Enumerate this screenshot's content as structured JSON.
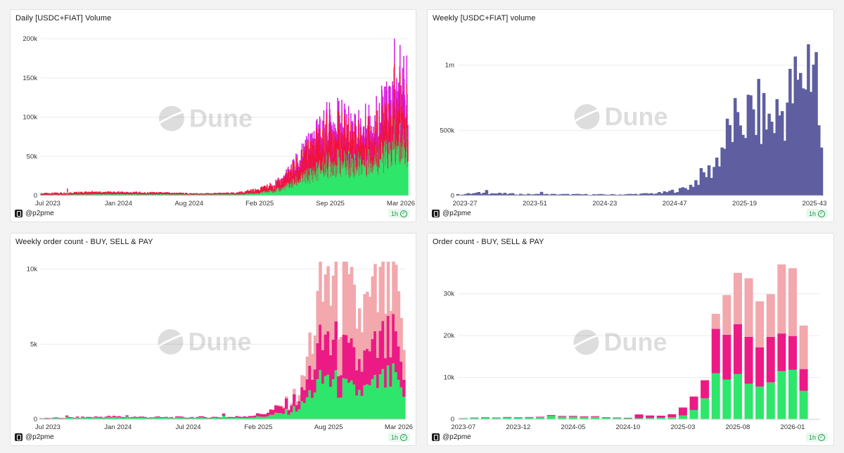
{
  "brand": {
    "watermark": "Dune",
    "author": "@p2pme",
    "refresh": "1h"
  },
  "colors": {
    "green": "#2ee66b",
    "red": "#f0133d",
    "magenta": "#d81ae0",
    "purple": "#5e5ea0",
    "pink": "#ec1a85",
    "lightpink": "#f2a8ad",
    "grid": "#ececec"
  },
  "chart_data": [
    {
      "type": "bar",
      "stacked": true,
      "title": "Daily [USDC+FIAT] Volume",
      "x_ticks": [
        "Jul 2023",
        "Jan 2024",
        "Aug 2024",
        "Feb 2025",
        "Sep 2025",
        "Mar 2026"
      ],
      "y_ticks": [
        "0",
        "50k",
        "100k",
        "150k",
        "200k"
      ],
      "ylim": [
        0,
        200000
      ],
      "x_range": [
        "2023-07-01",
        "2026-03-05"
      ],
      "grid": true,
      "series": [
        {
          "color": "green",
          "points": [
            [
              "2023-07-01",
              800
            ],
            [
              "2023-10-01",
              1500
            ],
            [
              "2024-01-01",
              1800
            ],
            [
              "2024-05-01",
              1500
            ],
            [
              "2024-09-01",
              1200
            ],
            [
              "2024-12-01",
              1400
            ],
            [
              "2025-02-01",
              3000
            ],
            [
              "2025-04-01",
              8000
            ],
            [
              "2025-05-01",
              15000
            ],
            [
              "2025-06-01",
              22000
            ],
            [
              "2025-07-01",
              30000
            ],
            [
              "2025-08-01",
              38000
            ],
            [
              "2025-09-01",
              42000
            ],
            [
              "2025-10-01",
              40000
            ],
            [
              "2025-11-01",
              40000
            ],
            [
              "2025-12-01",
              45000
            ],
            [
              "2026-01-01",
              50000
            ],
            [
              "2026-02-01",
              55000
            ],
            [
              "2026-03-05",
              60000
            ]
          ]
        },
        {
          "color": "red",
          "points": [
            [
              "2023-07-01",
              1500
            ],
            [
              "2023-10-01",
              2000
            ],
            [
              "2024-01-01",
              2000
            ],
            [
              "2024-05-01",
              1800
            ],
            [
              "2024-09-01",
              1000
            ],
            [
              "2024-12-01",
              1500
            ],
            [
              "2025-02-01",
              4000
            ],
            [
              "2025-04-01",
              8000
            ],
            [
              "2025-05-01",
              15000
            ],
            [
              "2025-06-01",
              22000
            ],
            [
              "2025-07-01",
              30000
            ],
            [
              "2025-08-01",
              35000
            ],
            [
              "2025-09-01",
              35000
            ],
            [
              "2025-10-01",
              30000
            ],
            [
              "2025-11-01",
              28000
            ],
            [
              "2025-12-01",
              32000
            ],
            [
              "2026-01-01",
              35000
            ],
            [
              "2026-02-01",
              40000
            ],
            [
              "2026-03-05",
              40000
            ]
          ]
        },
        {
          "color": "magenta",
          "points": [
            [
              "2023-07-01",
              0
            ],
            [
              "2025-03-01",
              0
            ],
            [
              "2025-05-01",
              2000
            ],
            [
              "2025-06-01",
              5000
            ],
            [
              "2025-07-01",
              8000
            ],
            [
              "2025-08-01",
              10000
            ],
            [
              "2025-09-01",
              10000
            ],
            [
              "2025-10-01",
              10000
            ],
            [
              "2025-11-01",
              9000
            ],
            [
              "2025-12-01",
              12000
            ],
            [
              "2026-01-01",
              15000
            ],
            [
              "2026-02-01",
              20000
            ],
            [
              "2026-03-05",
              25000
            ]
          ]
        }
      ],
      "spikes": [
        [
          "2023-09-10",
          9000
        ],
        [
          "2023-11-15",
          6000
        ],
        [
          "2024-03-10",
          5000
        ],
        [
          "2024-10-20",
          4000
        ],
        [
          "2025-02-25",
          8000
        ],
        [
          "2025-03-20",
          12000
        ],
        [
          "2026-01-28",
          204000
        ],
        [
          "2026-02-12",
          192000
        ],
        [
          "2026-02-22",
          178000
        ]
      ]
    },
    {
      "type": "bar",
      "title": "Weekly [USDC+FIAT] volume",
      "x_ticks": [
        "2023-27",
        "2023-51",
        "2024-23",
        "2024-47",
        "2025-19",
        "2025-43"
      ],
      "y_ticks": [
        "0",
        "500k",
        "1m"
      ],
      "ylim": [
        0,
        1230000
      ],
      "x_range": [
        "2023-07-03",
        "2026-03-02"
      ],
      "grid": true,
      "series": [
        {
          "color": "purple",
          "points": [
            [
              "2023-07-03",
              8000
            ],
            [
              "2023-09-01",
              20000
            ],
            [
              "2023-11-01",
              15000
            ],
            [
              "2024-01-01",
              10000
            ],
            [
              "2024-03-01",
              10000
            ],
            [
              "2024-06-01",
              9000
            ],
            [
              "2024-09-01",
              8000
            ],
            [
              "2024-11-01",
              12000
            ],
            [
              "2025-01-01",
              20000
            ],
            [
              "2025-02-15",
              45000
            ],
            [
              "2025-03-15",
              70000
            ],
            [
              "2025-04-15",
              150000
            ],
            [
              "2025-05-15",
              200000
            ],
            [
              "2025-06-15",
              400000
            ],
            [
              "2025-07-15",
              560000
            ],
            [
              "2025-08-15",
              600000
            ],
            [
              "2025-09-15",
              620000
            ],
            [
              "2025-10-15",
              560000
            ],
            [
              "2025-11-15",
              640000
            ],
            [
              "2025-12-15",
              780000
            ],
            [
              "2026-01-15",
              920000
            ],
            [
              "2026-02-10",
              1100000
            ],
            [
              "2026-03-02",
              320000
            ]
          ]
        }
      ],
      "spikes": [
        [
          "2023-09-17",
          42000
        ],
        [
          "2024-02-12",
          28000
        ],
        [
          "2025-02-17",
          57000
        ],
        [
          "2025-07-21",
          640000
        ],
        [
          "2026-01-05",
          940000
        ],
        [
          "2026-01-26",
          1160000
        ],
        [
          "2026-02-16",
          1100000
        ]
      ]
    },
    {
      "type": "bar",
      "stacked": true,
      "title": "Weekly order count - BUY, SELL & PAY",
      "x_ticks": [
        "Jul 2023",
        "Jan 2024",
        "Jul 2024",
        "Feb 2025",
        "Aug 2025",
        "Mar 2026"
      ],
      "y_ticks": [
        "0",
        "5k",
        "10k"
      ],
      "ylim": [
        0,
        10500
      ],
      "x_range": [
        "2023-07-01",
        "2026-03-05"
      ],
      "grid": true,
      "series": [
        {
          "color": "green",
          "points": [
            [
              "2023-07-01",
              40
            ],
            [
              "2024-01-01",
              120
            ],
            [
              "2024-06-01",
              90
            ],
            [
              "2024-12-01",
              90
            ],
            [
              "2025-02-01",
              150
            ],
            [
              "2025-03-01",
              230
            ],
            [
              "2025-04-01",
              360
            ],
            [
              "2025-05-01",
              550
            ],
            [
              "2025-06-01",
              900
            ],
            [
              "2025-07-01",
              2000
            ],
            [
              "2025-08-01",
              2600
            ],
            [
              "2025-09-01",
              2300
            ],
            [
              "2025-10-01",
              1900
            ],
            [
              "2025-11-01",
              1800
            ],
            [
              "2025-12-01",
              2000
            ],
            [
              "2026-01-01",
              2500
            ],
            [
              "2026-02-01",
              2600
            ],
            [
              "2026-03-05",
              1000
            ]
          ]
        },
        {
          "color": "pink",
          "points": [
            [
              "2023-07-01",
              20
            ],
            [
              "2024-01-01",
              60
            ],
            [
              "2024-06-01",
              40
            ],
            [
              "2024-12-01",
              60
            ],
            [
              "2025-02-01",
              150
            ],
            [
              "2025-03-01",
              260
            ],
            [
              "2025-04-01",
              400
            ],
            [
              "2025-05-01",
              550
            ],
            [
              "2025-06-01",
              700
            ],
            [
              "2025-07-01",
              1700
            ],
            [
              "2025-08-01",
              2500
            ],
            [
              "2025-09-01",
              2300
            ],
            [
              "2025-10-01",
              2100
            ],
            [
              "2025-11-01",
              1900
            ],
            [
              "2025-12-01",
              2000
            ],
            [
              "2026-01-01",
              2400
            ],
            [
              "2026-02-01",
              2300
            ],
            [
              "2026-03-05",
              700
            ]
          ]
        },
        {
          "color": "lightpink",
          "points": [
            [
              "2023-07-01",
              0
            ],
            [
              "2025-02-01",
              0
            ],
            [
              "2025-04-01",
              40
            ],
            [
              "2025-05-01",
              130
            ],
            [
              "2025-06-01",
              600
            ],
            [
              "2025-07-01",
              2500
            ],
            [
              "2025-08-01",
              3600
            ],
            [
              "2025-09-01",
              3900
            ],
            [
              "2025-10-01",
              3600
            ],
            [
              "2025-11-01",
              3100
            ],
            [
              "2025-12-01",
              3200
            ],
            [
              "2026-01-01",
              3500
            ],
            [
              "2026-02-01",
              3700
            ],
            [
              "2026-03-05",
              1300
            ]
          ]
        }
      ],
      "spikes": [
        [
          "2023-09-11",
          250
        ],
        [
          "2024-02-19",
          260
        ],
        [
          "2024-11-04",
          380
        ],
        [
          "2025-08-11",
          10200
        ],
        [
          "2026-02-09",
          10300
        ]
      ]
    },
    {
      "type": "bar",
      "stacked": true,
      "title": "Order count - BUY, SELL & PAY",
      "x_ticks": [
        "2023-07",
        "2023-12",
        "2024-05",
        "2024-10",
        "2025-03",
        "2025-08",
        "2026-01"
      ],
      "y_ticks": [
        "0",
        "10k",
        "20k",
        "30k"
      ],
      "ylim": [
        0,
        37500
      ],
      "categories": [
        "2023-07",
        "2023-08",
        "2023-09",
        "2023-10",
        "2023-11",
        "2023-12",
        "2024-01",
        "2024-02",
        "2024-03",
        "2024-04",
        "2024-05",
        "2024-06",
        "2024-07",
        "2024-08",
        "2024-09",
        "2024-10",
        "2024-11",
        "2024-12",
        "2025-01",
        "2025-02",
        "2025-03",
        "2025-04",
        "2025-05",
        "2025-06",
        "2025-07",
        "2025-08",
        "2025-09",
        "2025-10",
        "2025-11",
        "2025-12",
        "2026-01",
        "2026-02",
        "2026-03"
      ],
      "grid": true,
      "series": [
        {
          "color": "green",
          "values": [
            200,
            300,
            350,
            300,
            400,
            350,
            400,
            450,
            800,
            600,
            600,
            500,
            550,
            350,
            300,
            250,
            250,
            300,
            350,
            500,
            900,
            2200,
            5000,
            11000,
            9500,
            10800,
            8500,
            7800,
            8800,
            11500,
            11800,
            6800,
            0
          ]
        },
        {
          "color": "pink",
          "values": [
            60,
            100,
            120,
            110,
            130,
            120,
            130,
            150,
            200,
            180,
            200,
            170,
            180,
            130,
            120,
            100,
            900,
            600,
            500,
            700,
            1900,
            3200,
            4300,
            10600,
            10700,
            11900,
            11200,
            9400,
            10900,
            9000,
            8100,
            5200,
            0
          ]
        },
        {
          "color": "lightpink",
          "values": [
            0,
            0,
            0,
            0,
            0,
            0,
            0,
            0,
            0,
            0,
            0,
            0,
            0,
            0,
            0,
            0,
            0,
            0,
            0,
            0,
            0,
            100,
            100,
            3600,
            9500,
            12300,
            14000,
            11000,
            10200,
            16500,
            16200,
            10400,
            0
          ]
        }
      ]
    }
  ]
}
